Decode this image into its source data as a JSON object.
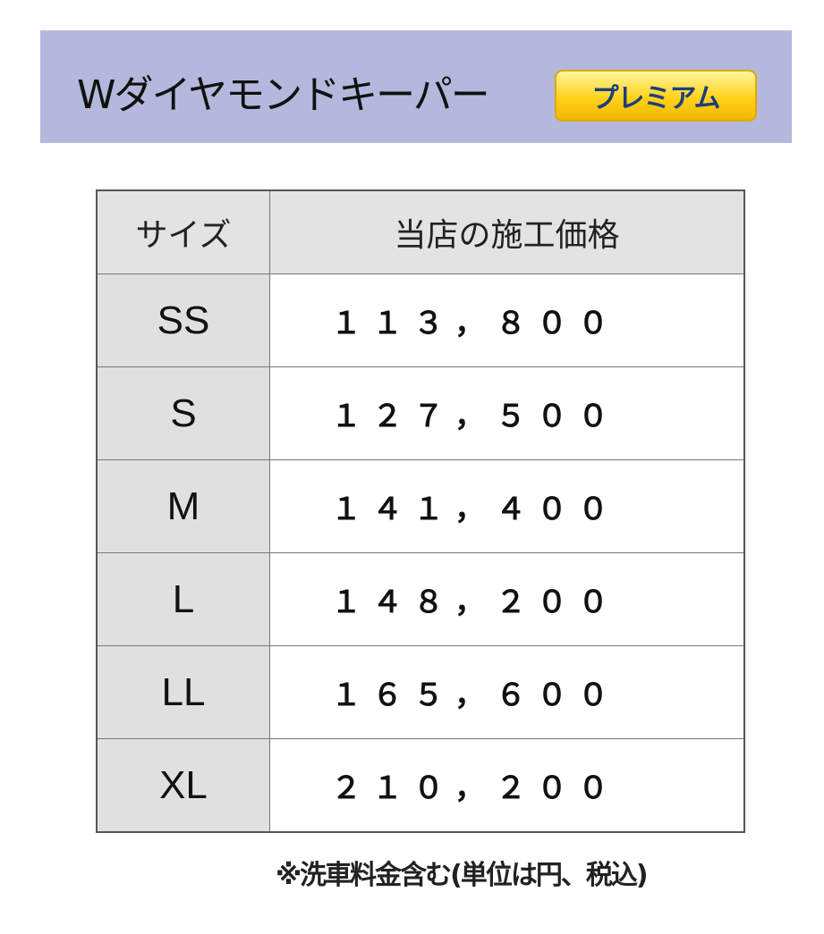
{
  "header": {
    "title": "Wダイヤモンドキーパー",
    "badge": "プレミアム",
    "banner_color": "#b4b8dc",
    "badge_color": "#ffd21a"
  },
  "table": {
    "columns": [
      "サイズ",
      "当店の施工価格"
    ],
    "rows": [
      {
        "size": "SS",
        "price": "１１３，８００"
      },
      {
        "size": "S",
        "price": "１２７，５００"
      },
      {
        "size": "M",
        "price": "１４１，４００"
      },
      {
        "size": "L",
        "price": "１４８，２００"
      },
      {
        "size": "LL",
        "price": "１６５，６００"
      },
      {
        "size": "XL",
        "price": "２１０，２００"
      }
    ]
  },
  "note": "※洗車料金含む(単位は円、税込)"
}
